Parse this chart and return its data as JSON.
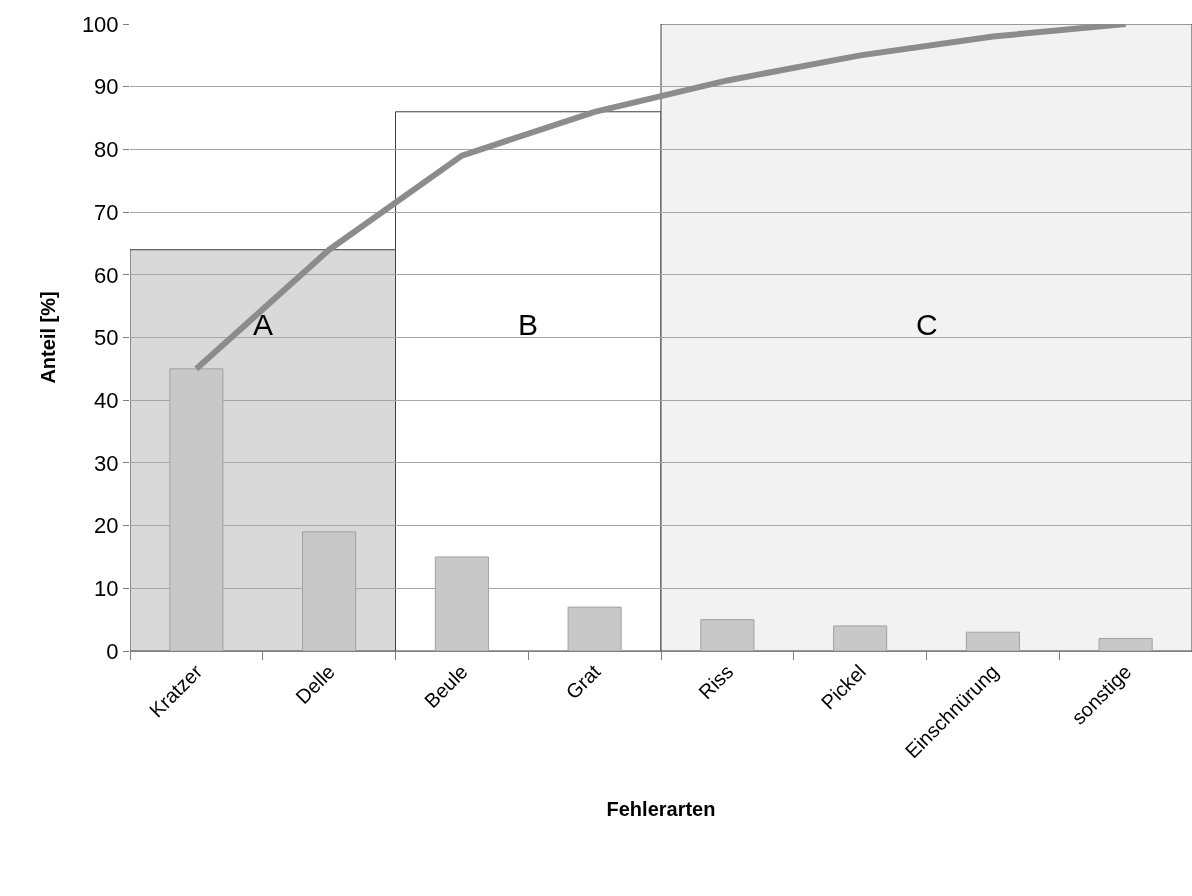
{
  "chart_data": {
    "type": "bar",
    "xlabel": "Fehlerarten",
    "ylabel": "Anteil [%]",
    "categories": [
      "Kratzer",
      "Delle",
      "Beule",
      "Grat",
      "Riss",
      "Pickel",
      "Einschnürung",
      "sonstige"
    ],
    "series": [
      {
        "color": "#c8c8c8",
        "values": [
          45,
          19,
          15,
          7,
          5,
          4,
          3,
          2
        ]
      },
      {
        "type": "line",
        "color": "#8c8c8c",
        "values": [
          45,
          64,
          79,
          86,
          91,
          95,
          98,
          100
        ]
      }
    ],
    "bands": [
      {
        "axis": "x",
        "from": "Kratzer",
        "to": "Delle",
        "label": "A",
        "color": "#d9d9d9"
      },
      {
        "axis": "x",
        "from": "Beule",
        "to": "Grat",
        "label": "B",
        "color": "#ffffff"
      },
      {
        "axis": "x",
        "from": "Riss",
        "to": "sonstige",
        "label": "C",
        "color": "#f2f2f2"
      }
    ],
    "ylim": [
      0,
      100
    ],
    "yticks": [
      0,
      10,
      20,
      30,
      40,
      50,
      60,
      70,
      80,
      90,
      100
    ],
    "grid": "y",
    "line_style": "solid"
  }
}
